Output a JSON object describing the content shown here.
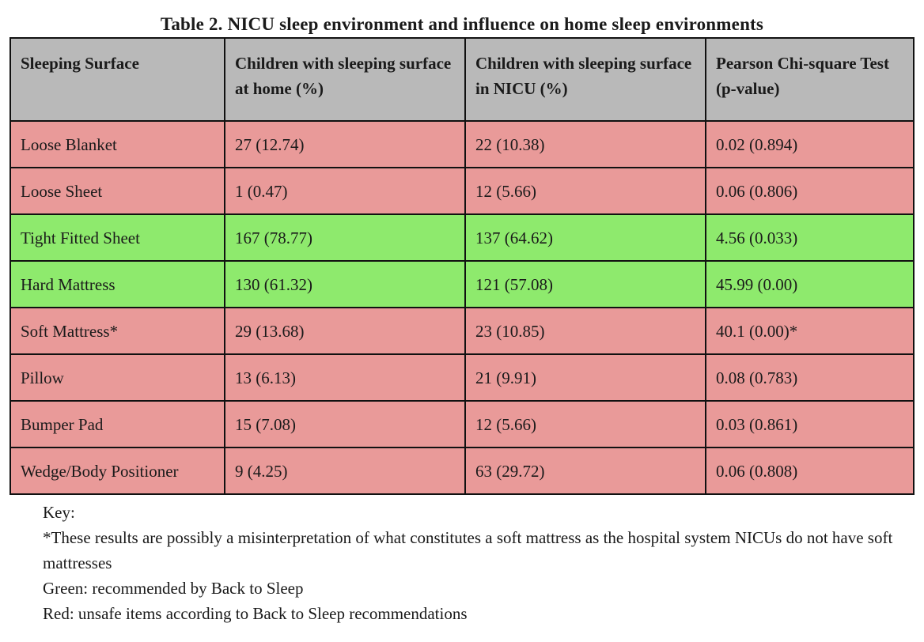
{
  "title": "Table 2. NICU sleep environment and influence on home sleep environments",
  "table": {
    "headers": [
      "Sleeping Surface",
      "Children with sleeping surface at home (%)",
      "Children with sleeping surface in NICU (%)",
      "Pearson Chi-square Test (p-value)"
    ],
    "rows": [
      {
        "surface": "Loose Blanket",
        "home": "27 (12.74)",
        "nicu": "22 (10.38)",
        "chi": "0.02 (0.894)",
        "status": "red"
      },
      {
        "surface": "Loose Sheet",
        "home": "1 (0.47)",
        "nicu": "12 (5.66)",
        "chi": "0.06 (0.806)",
        "status": "red"
      },
      {
        "surface": "Tight Fitted Sheet",
        "home": "167 (78.77)",
        "nicu": "137 (64.62)",
        "chi": "4.56 (0.033)",
        "status": "green"
      },
      {
        "surface": "Hard Mattress",
        "home": "130 (61.32)",
        "nicu": "121 (57.08)",
        "chi": "45.99 (0.00)",
        "status": "green"
      },
      {
        "surface": "Soft Mattress*",
        "home": "29 (13.68)",
        "nicu": "23 (10.85)",
        "chi": "40.1 (0.00)*",
        "status": "red"
      },
      {
        "surface": "Pillow",
        "home": "13 (6.13)",
        "nicu": "21 (9.91)",
        "chi": "0.08 (0.783)",
        "status": "red"
      },
      {
        "surface": "Bumper Pad",
        "home": "15 (7.08)",
        "nicu": "12 (5.66)",
        "chi": "0.03 (0.861)",
        "status": "red"
      },
      {
        "surface": "Wedge/Body Positioner",
        "home": "9 (4.25)",
        "nicu": "63 (29.72)",
        "chi": "0.06 (0.808)",
        "status": "red"
      }
    ]
  },
  "key": {
    "heading": "Key:",
    "note": "*These results are possibly a misinterpretation of what constitutes a soft mattress as the hospital system NICUs do not have soft mattresses",
    "green": "Green: recommended by Back to Sleep",
    "red": "Red: unsafe items according to Back to Sleep recommendations"
  },
  "colors": {
    "header_bg": "#b9b9b9",
    "red_row": "#e99a99",
    "green_row": "#8eea6d"
  }
}
